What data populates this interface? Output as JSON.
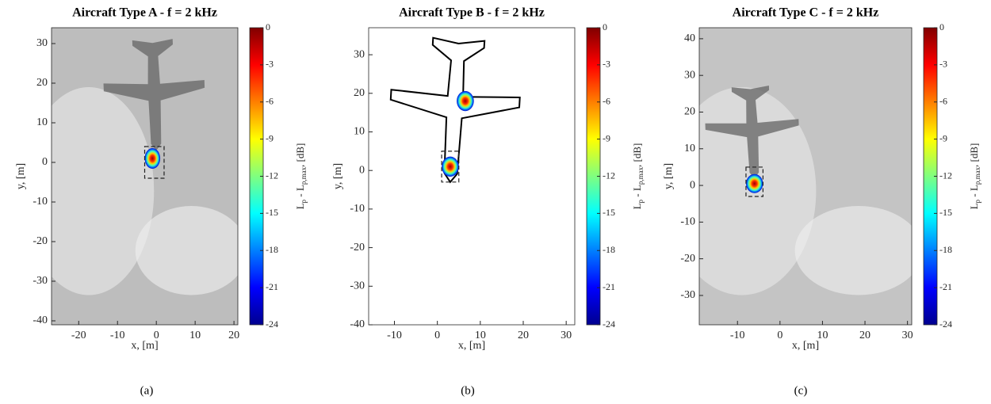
{
  "chart_data": [
    {
      "type": "acoustic_map",
      "title": "Aircraft Type A - f = 2 kHz",
      "xlabel": "x, [m]",
      "ylabel": "y, [m]",
      "colorbar_label": [
        "L",
        "p",
        " - L",
        "p,max",
        ", [dB]"
      ],
      "caption": "(a)",
      "xlim": [
        -27,
        21
      ],
      "ylim": [
        -41,
        34
      ],
      "xticks": [
        -20,
        -10,
        0,
        10,
        20
      ],
      "yticks": [
        -40,
        -30,
        -20,
        -10,
        0,
        10,
        20,
        30
      ],
      "clim": [
        -24,
        0
      ],
      "cticks": [
        0,
        -3,
        -6,
        -9,
        -12,
        -15,
        -18,
        -21,
        -24
      ],
      "sources": {
        "x": [
          -1
        ],
        "y": [
          1
        ]
      },
      "roi": {
        "x": [
          -3,
          2
        ],
        "y": [
          -4,
          4
        ]
      },
      "background": "#bdbdbd",
      "aircraft_style": "shadow"
    },
    {
      "type": "acoustic_map",
      "title": "Aircraft Type B - f = 2 kHz",
      "xlabel": "x, [m]",
      "ylabel": "y, [m]",
      "colorbar_label": [
        "L",
        "p",
        " - L",
        "p,max",
        ", [dB]"
      ],
      "caption": "(b)",
      "xlim": [
        -16,
        32
      ],
      "ylim": [
        -40,
        37
      ],
      "xticks": [
        -10,
        0,
        10,
        20,
        30
      ],
      "yticks": [
        -40,
        -30,
        -20,
        -10,
        0,
        10,
        20,
        30
      ],
      "clim": [
        -24,
        0
      ],
      "cticks": [
        0,
        -3,
        -6,
        -9,
        -12,
        -15,
        -18,
        -21,
        -24
      ],
      "sources": {
        "x": [
          3,
          6.5
        ],
        "y": [
          1,
          18
        ]
      },
      "roi": {
        "x": [
          1,
          5
        ],
        "y": [
          -3,
          5
        ]
      },
      "background": "#ffffff",
      "aircraft_style": "outline"
    },
    {
      "type": "acoustic_map",
      "title": "Aircraft Type C - f = 2 kHz",
      "xlabel": "x, [m]",
      "ylabel": "y, [m]",
      "colorbar_label": [
        "L",
        "p",
        " - L",
        "p,max",
        ", [dB]"
      ],
      "caption": "(c)",
      "xlim": [
        -19,
        31
      ],
      "ylim": [
        -38,
        43
      ],
      "xticks": [
        -10,
        0,
        10,
        20,
        30
      ],
      "yticks": [
        -30,
        -20,
        -10,
        0,
        10,
        20,
        30,
        40
      ],
      "clim": [
        -24,
        0
      ],
      "cticks": [
        0,
        -3,
        -6,
        -9,
        -12,
        -15,
        -18,
        -21,
        -24
      ],
      "sources": {
        "x": [
          -6
        ],
        "y": [
          0.5
        ]
      },
      "roi": {
        "x": [
          -8,
          -4
        ],
        "y": [
          -3,
          5
        ]
      },
      "background": "#c4c4c4",
      "aircraft_style": "shadow"
    }
  ]
}
